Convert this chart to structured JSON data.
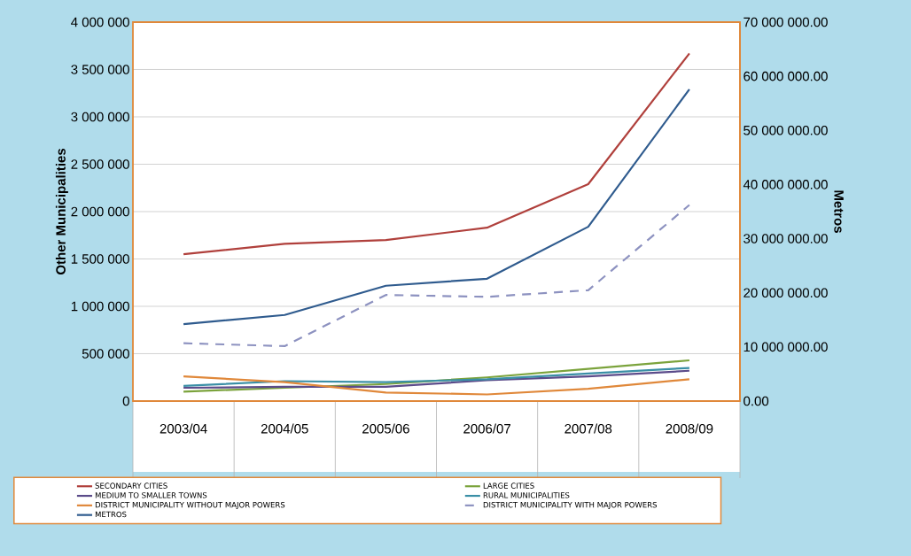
{
  "chart_data": {
    "type": "line",
    "categories": [
      "2003/04",
      "2004/05",
      "2005/06",
      "2006/07",
      "2007/08",
      "2008/09"
    ],
    "ylabel": "Other Municipalities",
    "y2label": "Metros",
    "ylim": [
      0,
      4000000
    ],
    "yticks": [
      {
        "value": 0,
        "label": "0"
      },
      {
        "value": 500000,
        "label": "500 000"
      },
      {
        "value": 1000000,
        "label": "1 000 000"
      },
      {
        "value": 1500000,
        "label": "1 500 000"
      },
      {
        "value": 2000000,
        "label": "2 000 000"
      },
      {
        "value": 2500000,
        "label": "2 500 000"
      },
      {
        "value": 3000000,
        "label": "3 000 000"
      },
      {
        "value": 3500000,
        "label": "3 500 000"
      },
      {
        "value": 4000000,
        "label": "4 000 000"
      }
    ],
    "y2lim": [
      0,
      70000000
    ],
    "y2ticks": [
      {
        "value": 0,
        "label": "0.00"
      },
      {
        "value": 10000000,
        "label": "10 000 000.00"
      },
      {
        "value": 20000000,
        "label": "20 000 000.00"
      },
      {
        "value": 30000000,
        "label": "30 000 000.00"
      },
      {
        "value": 40000000,
        "label": "40 000 000.00"
      },
      {
        "value": 50000000,
        "label": "50 000 000.00"
      },
      {
        "value": 60000000,
        "label": "60 000 000.00"
      },
      {
        "value": 70000000,
        "label": "70 000 000.00"
      }
    ],
    "grid": "y",
    "legend": "bottom",
    "series": [
      {
        "name": "SECONDARY CITIES",
        "color": "#b0403c",
        "values": [
          1550000,
          1660000,
          1700000,
          1830000,
          2290000,
          3670000
        ]
      },
      {
        "name": "LARGE CITIES",
        "color": "#7ba33c",
        "values": [
          100000,
          140000,
          180000,
          250000,
          340000,
          430000
        ]
      },
      {
        "name": "MEDIUM TO SMALLER TOWNS",
        "color": "#5b4b8a",
        "values": [
          140000,
          150000,
          150000,
          220000,
          260000,
          320000
        ]
      },
      {
        "name": "RURAL MUNICIPALITIES",
        "color": "#3a8fa6",
        "values": [
          160000,
          210000,
          200000,
          230000,
          290000,
          350000
        ]
      },
      {
        "name": "DISTRICT MUNICIPALITY WITHOUT MAJOR POWERS",
        "color": "#e0883a",
        "values": [
          260000,
          200000,
          90000,
          70000,
          130000,
          230000
        ]
      },
      {
        "name": "DISTRICT MUNICIPALITY WITH MAJOR POWERS",
        "color": "#8d92c0",
        "line_style": "dashed",
        "values": [
          610000,
          580000,
          1120000,
          1100000,
          1170000,
          2070000
        ]
      },
      {
        "name": "METROS",
        "color": "#2f5b8e",
        "axis": "y2",
        "values": [
          14200000,
          15900000,
          21300000,
          22600000,
          32200000,
          57600000
        ]
      }
    ]
  }
}
